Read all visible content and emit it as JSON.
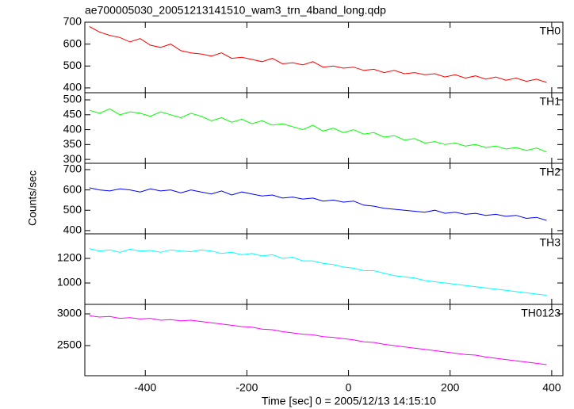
{
  "chart_data": [
    {
      "type": "line",
      "title": "ae700005030_20051213141510_wam3_trn_4band_long.qdp",
      "xlim": [
        -519,
        422
      ],
      "xticks": [
        -400,
        -200,
        0,
        200,
        400
      ],
      "ylim": [
        378,
        700
      ],
      "yticks": [
        400,
        500,
        600,
        700
      ],
      "x": [
        -510,
        -490,
        -470,
        -450,
        -430,
        -410,
        -390,
        -370,
        -350,
        -330,
        -310,
        -290,
        -270,
        -250,
        -230,
        -210,
        -190,
        -170,
        -150,
        -130,
        -110,
        -90,
        -70,
        -50,
        -30,
        -10,
        10,
        30,
        50,
        70,
        90,
        110,
        130,
        150,
        170,
        190,
        210,
        230,
        250,
        270,
        290,
        310,
        330,
        350,
        370,
        390
      ],
      "series": [
        {
          "name": "TH0",
          "color": "#ff0000",
          "values": [
            680,
            655,
            640,
            630,
            610,
            625,
            595,
            585,
            600,
            570,
            560,
            555,
            545,
            560,
            535,
            540,
            530,
            520,
            535,
            510,
            515,
            505,
            520,
            495,
            500,
            490,
            495,
            480,
            485,
            470,
            480,
            465,
            470,
            460,
            465,
            450,
            460,
            445,
            455,
            440,
            450,
            435,
            445,
            430,
            440,
            425
          ]
        }
      ]
    },
    {
      "type": "line",
      "xlim": [
        -519,
        422
      ],
      "xticks": [
        -400,
        -200,
        0,
        200,
        400
      ],
      "ylim": [
        287,
        524
      ],
      "yticks": [
        300,
        350,
        400,
        450,
        500
      ],
      "x": [
        -510,
        -490,
        -470,
        -450,
        -430,
        -410,
        -390,
        -370,
        -350,
        -330,
        -310,
        -290,
        -270,
        -250,
        -230,
        -210,
        -190,
        -170,
        -150,
        -130,
        -110,
        -90,
        -70,
        -50,
        -30,
        -10,
        10,
        30,
        50,
        70,
        90,
        110,
        130,
        150,
        170,
        190,
        210,
        230,
        250,
        270,
        290,
        310,
        330,
        350,
        370,
        390
      ],
      "series": [
        {
          "name": "TH1",
          "color": "#00ff00",
          "values": [
            465,
            455,
            470,
            450,
            460,
            455,
            445,
            460,
            450,
            440,
            455,
            445,
            430,
            440,
            425,
            435,
            420,
            430,
            415,
            420,
            410,
            400,
            415,
            395,
            405,
            390,
            400,
            385,
            390,
            375,
            380,
            365,
            370,
            355,
            360,
            350,
            355,
            345,
            350,
            340,
            345,
            335,
            340,
            330,
            338,
            325
          ]
        }
      ]
    },
    {
      "type": "line",
      "ylabel": "Counts/sec",
      "xlim": [
        -519,
        422
      ],
      "xticks": [
        -400,
        -200,
        0,
        200,
        400
      ],
      "ylim": [
        384,
        731
      ],
      "yticks": [
        400,
        500,
        600,
        700
      ],
      "x": [
        -510,
        -490,
        -470,
        -450,
        -430,
        -410,
        -390,
        -370,
        -350,
        -330,
        -310,
        -290,
        -270,
        -250,
        -230,
        -210,
        -190,
        -170,
        -150,
        -130,
        -110,
        -90,
        -70,
        -50,
        -30,
        -10,
        10,
        30,
        50,
        70,
        90,
        110,
        130,
        150,
        170,
        190,
        210,
        230,
        250,
        270,
        290,
        310,
        330,
        350,
        370,
        390
      ],
      "series": [
        {
          "name": "TH2",
          "color": "#0000ff",
          "values": [
            610,
            600,
            595,
            605,
            600,
            590,
            605,
            595,
            600,
            585,
            600,
            590,
            580,
            595,
            575,
            590,
            580,
            570,
            575,
            560,
            565,
            555,
            560,
            545,
            550,
            540,
            545,
            525,
            520,
            510,
            505,
            500,
            495,
            490,
            500,
            485,
            490,
            480,
            485,
            475,
            480,
            470,
            475,
            460,
            465,
            450
          ]
        }
      ]
    },
    {
      "type": "line",
      "xlim": [
        -519,
        422
      ],
      "xticks": [
        -400,
        -200,
        0,
        200,
        400
      ],
      "ylim": [
        826,
        1400
      ],
      "yticks": [
        1000,
        1200
      ],
      "x": [
        -510,
        -490,
        -470,
        -450,
        -430,
        -410,
        -390,
        -370,
        -350,
        -330,
        -310,
        -290,
        -270,
        -250,
        -230,
        -210,
        -190,
        -170,
        -150,
        -130,
        -110,
        -90,
        -70,
        -50,
        -30,
        -10,
        10,
        30,
        50,
        70,
        90,
        110,
        130,
        150,
        170,
        190,
        210,
        230,
        250,
        270,
        290,
        310,
        330,
        350,
        370,
        390
      ],
      "series": [
        {
          "name": "TH3",
          "color": "#00ffff",
          "values": [
            1280,
            1260,
            1270,
            1250,
            1275,
            1260,
            1265,
            1250,
            1270,
            1260,
            1255,
            1270,
            1260,
            1240,
            1250,
            1230,
            1240,
            1220,
            1230,
            1200,
            1210,
            1180,
            1180,
            1160,
            1150,
            1130,
            1120,
            1100,
            1100,
            1080,
            1060,
            1050,
            1040,
            1020,
            1010,
            1000,
            990,
            980,
            970,
            960,
            950,
            940,
            930,
            920,
            910,
            900
          ]
        }
      ]
    },
    {
      "type": "line",
      "xlabel": "Time [sec] 0 = 2005/12/13 14:15:10",
      "xlim": [
        -519,
        422
      ],
      "xticks": [
        -400,
        -200,
        0,
        200,
        400
      ],
      "ylim": [
        2025,
        3150
      ],
      "yticks": [
        2500,
        3000
      ],
      "x": [
        -510,
        -490,
        -470,
        -450,
        -430,
        -410,
        -390,
        -370,
        -350,
        -330,
        -310,
        -290,
        -270,
        -250,
        -230,
        -210,
        -190,
        -170,
        -150,
        -130,
        -110,
        -90,
        -70,
        -50,
        -30,
        -10,
        10,
        30,
        50,
        70,
        90,
        110,
        130,
        150,
        170,
        190,
        210,
        230,
        250,
        270,
        290,
        310,
        330,
        350,
        370,
        390
      ],
      "series": [
        {
          "name": "TH0123",
          "color": "#ff00ff",
          "values": [
            2970,
            2950,
            2960,
            2930,
            2940,
            2920,
            2930,
            2900,
            2910,
            2890,
            2900,
            2880,
            2860,
            2840,
            2820,
            2800,
            2790,
            2760,
            2750,
            2720,
            2700,
            2680,
            2670,
            2640,
            2630,
            2610,
            2590,
            2560,
            2550,
            2520,
            2500,
            2480,
            2460,
            2440,
            2420,
            2400,
            2380,
            2360,
            2350,
            2320,
            2300,
            2280,
            2260,
            2240,
            2220,
            2200
          ]
        }
      ]
    }
  ]
}
